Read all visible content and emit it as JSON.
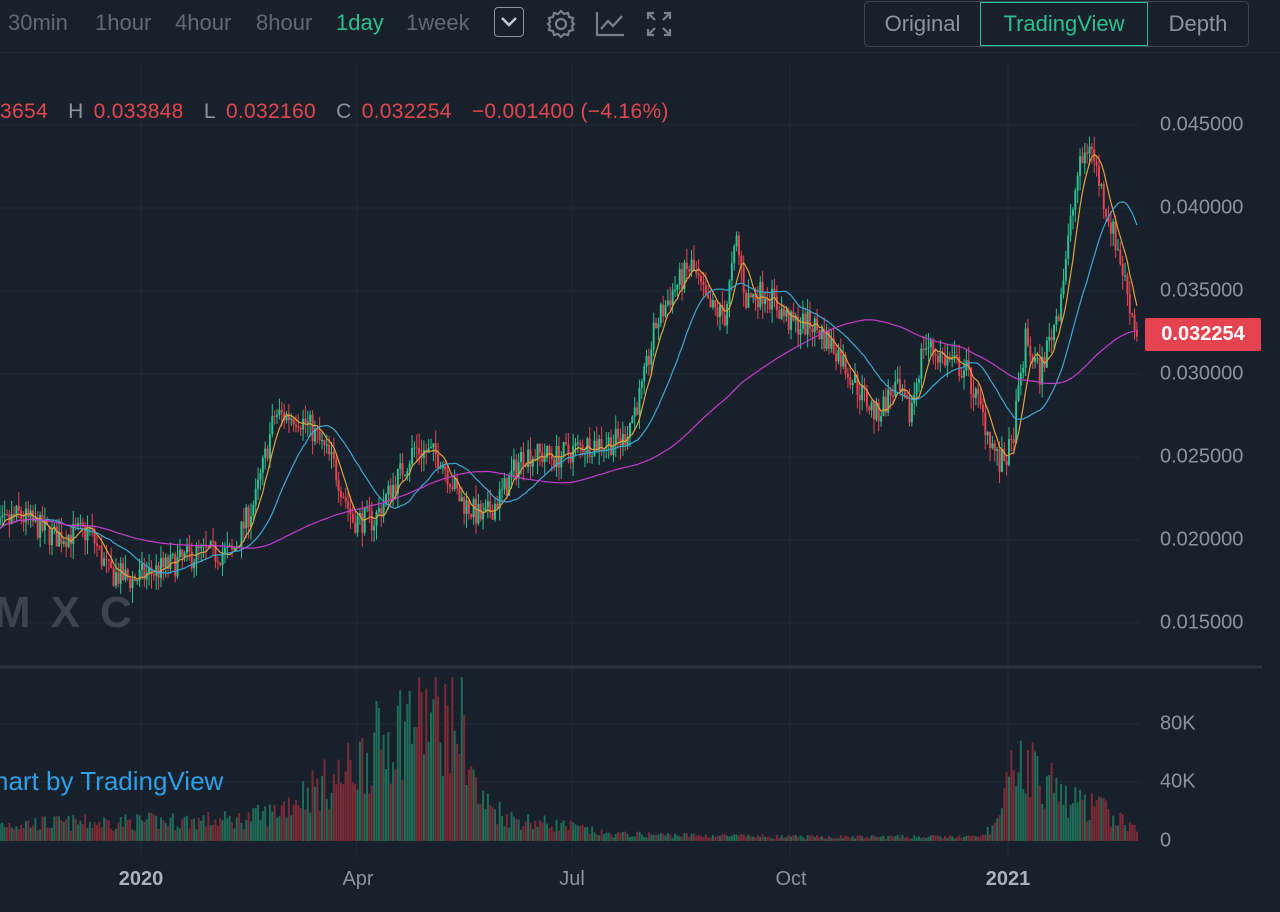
{
  "toolbar": {
    "intervals": [
      {
        "label": "30min",
        "active": false
      },
      {
        "label": "1hour",
        "active": false
      },
      {
        "label": "4hour",
        "active": false
      },
      {
        "label": "8hour",
        "active": false
      },
      {
        "label": "1day",
        "active": true
      },
      {
        "label": "1week",
        "active": false
      }
    ],
    "icons": [
      "chevron-down-icon",
      "gear-icon",
      "line-chart-icon",
      "fullscreen-icon"
    ],
    "views": [
      "Original",
      "TradingView",
      "Depth"
    ],
    "active_view": "TradingView"
  },
  "ohlc": {
    "open_fragment": "3654",
    "h_label": "H",
    "h_value": "0.033848",
    "l_label": "L",
    "l_value": "0.032160",
    "c_label": "C",
    "c_value": "0.032254",
    "change": "−0.001400 (−4.16%)"
  },
  "last_price": "0.032254",
  "watermark": "MXC",
  "attribution": "hart by TradingView",
  "colors": {
    "background": "#18212b",
    "up": "#2bc08d",
    "down": "#e5434f",
    "ma_short": "#e0a23c",
    "ma_mid": "#3aa7d6",
    "ma_long": "#c33ccd",
    "accent": "#2bc08d"
  },
  "chart_data": {
    "type": "candlestick",
    "price_axis": {
      "ticks": [
        "0.045000",
        "0.040000",
        "0.035000",
        "0.030000",
        "0.025000",
        "0.020000",
        "0.015000"
      ],
      "ylim": [
        0.0115,
        0.0475
      ]
    },
    "volume_axis": {
      "ticks": [
        "80K",
        "40K",
        "0"
      ],
      "ylim": [
        0,
        115000
      ]
    },
    "date_ticks": [
      {
        "label": "2020",
        "bold": true
      },
      {
        "label": "Apr",
        "bold": false
      },
      {
        "label": "Jul",
        "bold": false
      },
      {
        "label": "Oct",
        "bold": false
      },
      {
        "label": "2021",
        "bold": true
      }
    ],
    "date_range": [
      "2019-10-28",
      "2021-02-24"
    ],
    "date_tick_dates": [
      "2020-01-01",
      "2020-04-01",
      "2020-07-01",
      "2020-10-01",
      "2021-01-01"
    ],
    "price_path": [
      [
        "2019-10-28",
        0.0202
      ],
      [
        "2019-11-10",
        0.0215
      ],
      [
        "2019-11-25",
        0.0202
      ],
      [
        "2019-12-10",
        0.0205
      ],
      [
        "2019-12-18",
        0.018
      ],
      [
        "2019-12-28",
        0.0176
      ],
      [
        "2020-01-10",
        0.0183
      ],
      [
        "2020-01-25",
        0.0192
      ],
      [
        "2020-02-08",
        0.0192
      ],
      [
        "2020-02-18",
        0.0225
      ],
      [
        "2020-02-26",
        0.0275
      ],
      [
        "2020-03-06",
        0.0275
      ],
      [
        "2020-03-12",
        0.0268
      ],
      [
        "2020-03-22",
        0.0245
      ],
      [
        "2020-03-30",
        0.0212
      ],
      [
        "2020-04-08",
        0.0212
      ],
      [
        "2020-04-15",
        0.023
      ],
      [
        "2020-04-25",
        0.0255
      ],
      [
        "2020-05-06",
        0.025
      ],
      [
        "2020-05-14",
        0.0225
      ],
      [
        "2020-05-24",
        0.0212
      ],
      [
        "2020-06-01",
        0.0228
      ],
      [
        "2020-06-10",
        0.0252
      ],
      [
        "2020-06-24",
        0.025
      ],
      [
        "2020-07-08",
        0.0258
      ],
      [
        "2020-07-22",
        0.026
      ],
      [
        "2020-07-30",
        0.029
      ],
      [
        "2020-08-05",
        0.033
      ],
      [
        "2020-08-12",
        0.035
      ],
      [
        "2020-08-20",
        0.0365
      ],
      [
        "2020-08-27",
        0.034
      ],
      [
        "2020-09-03",
        0.0335
      ],
      [
        "2020-09-08",
        0.038
      ],
      [
        "2020-09-12",
        0.0345
      ],
      [
        "2020-09-20",
        0.035
      ],
      [
        "2020-10-01",
        0.033
      ],
      [
        "2020-10-10",
        0.033
      ],
      [
        "2020-10-20",
        0.0315
      ],
      [
        "2020-10-30",
        0.029
      ],
      [
        "2020-11-06",
        0.0275
      ],
      [
        "2020-11-14",
        0.0292
      ],
      [
        "2020-11-20",
        0.0275
      ],
      [
        "2020-11-26",
        0.0318
      ],
      [
        "2020-12-04",
        0.031
      ],
      [
        "2020-12-14",
        0.0302
      ],
      [
        "2020-12-22",
        0.027
      ],
      [
        "2020-12-28",
        0.0245
      ],
      [
        "2021-01-02",
        0.0255
      ],
      [
        "2021-01-08",
        0.032
      ],
      [
        "2021-01-14",
        0.03
      ],
      [
        "2021-01-22",
        0.034
      ],
      [
        "2021-01-30",
        0.042
      ],
      [
        "2021-02-04",
        0.044
      ],
      [
        "2021-02-10",
        0.0405
      ],
      [
        "2021-02-16",
        0.0375
      ],
      [
        "2021-02-24",
        0.0323
      ]
    ],
    "volume_path": [
      [
        "2019-10-28",
        12000
      ],
      [
        "2020-02-10",
        15000
      ],
      [
        "2020-02-25",
        20000
      ],
      [
        "2020-03-10",
        35000
      ],
      [
        "2020-03-25",
        45000
      ],
      [
        "2020-04-10",
        70000
      ],
      [
        "2020-04-25",
        90000
      ],
      [
        "2020-05-15",
        85000
      ],
      [
        "2020-05-22",
        30000
      ],
      [
        "2020-06-05",
        16000
      ],
      [
        "2020-07-01",
        10000
      ],
      [
        "2020-07-15",
        5000
      ],
      [
        "2020-10-01",
        3000
      ],
      [
        "2020-12-20",
        3000
      ],
      [
        "2020-12-28",
        15000
      ],
      [
        "2021-01-04",
        60000
      ],
      [
        "2021-01-12",
        50000
      ],
      [
        "2021-01-25",
        30000
      ],
      [
        "2021-02-10",
        22000
      ],
      [
        "2021-02-24",
        8000
      ]
    ],
    "ma_periods": [
      7,
      25,
      99
    ]
  }
}
